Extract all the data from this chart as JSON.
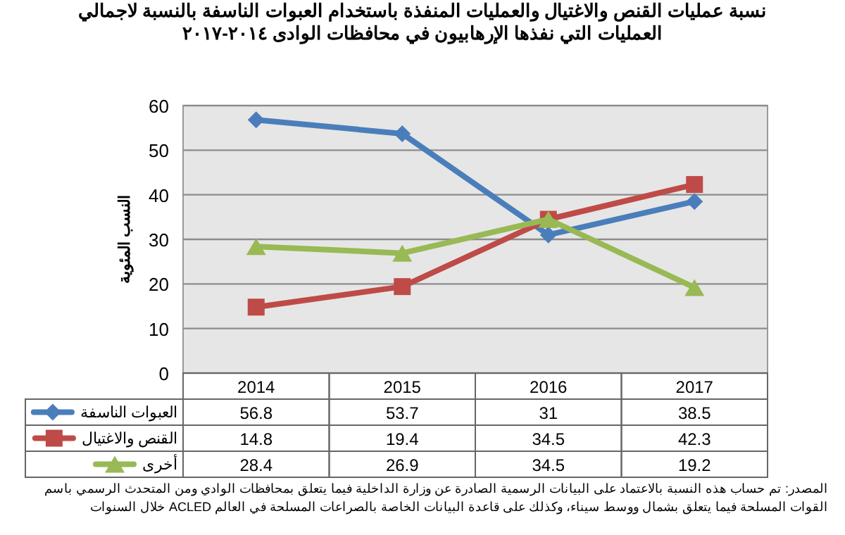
{
  "chart_data": {
    "type": "line",
    "title": "نسبة عمليات القنص والاغتيال والعمليات المنفذة باستخدام العبوات الناسفة بالنسبة لاجمالي العمليات التي نفذها الإرهابيون في محافظات الوادى ٢٠١٤-٢٠١٧",
    "ylabel": "النسب المئوية",
    "categories": [
      "2014",
      "2015",
      "2016",
      "2017"
    ],
    "series": [
      {
        "name": "العبوات الناسفة",
        "color": "#4a7ebb",
        "marker": "diamond",
        "values": [
          56.8,
          53.7,
          31,
          38.5
        ]
      },
      {
        "name": "القنص والاغتيال",
        "color": "#be4b48",
        "marker": "square",
        "values": [
          14.8,
          19.4,
          34.5,
          42.3
        ]
      },
      {
        "name": "أخرى",
        "color": "#98b954",
        "marker": "triangle",
        "values": [
          28.4,
          26.9,
          34.5,
          19.2
        ]
      }
    ],
    "ylim": [
      0,
      60
    ],
    "yticks": [
      0,
      10,
      20,
      30,
      40,
      50,
      60
    ],
    "grid": "y",
    "legend": "bottom",
    "data_labels": true,
    "annotations": [
      "المصدر: تم حساب هذه النسبة بالاعتماد على البيانات الرسمية الصادرة عن وزارة الداخلية فيما يتعلق بمحافظات الوادي ومن المتحدث الرسمي باسم القوات المسلحة فيما يتعلق بشمال ووسط سيناء، وكذلك على قاعدة البيانات الخاصة بالصراعات المسلحة في العالم ACLED خلال السنوات"
    ]
  }
}
